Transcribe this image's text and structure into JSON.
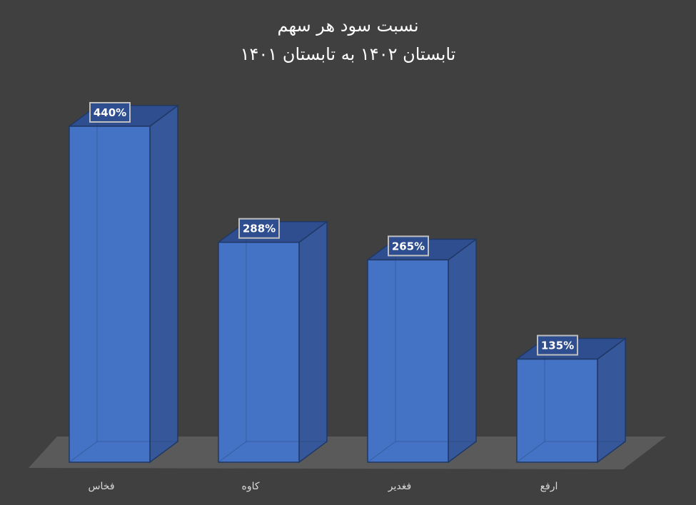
{
  "chart_data": {
    "type": "bar",
    "style": "3d-column",
    "title": "نسبت سود هر سهم",
    "subtitle": "تابستان ۱۴۰۲ به تابستان ۱۴۰۱",
    "categories": [
      "فخاس",
      "کاوه",
      "فغدیر",
      "ارفع"
    ],
    "values": [
      440,
      288,
      265,
      135
    ],
    "data_labels": [
      "440%",
      "288%",
      "265%",
      "135%"
    ],
    "unit": "%",
    "ylim": [
      0,
      500
    ],
    "grid": false,
    "legend": "none",
    "xlabel": "",
    "ylabel": ""
  },
  "colors": {
    "background": "#404040",
    "bar_front": "#4472C4",
    "bar_side": "#36579A",
    "bar_top": "#2E4E8F",
    "bar_edge": "#203864",
    "floor": "#5A5A5A",
    "text": "#FFFFFF",
    "axis_text": "#D9D9D9",
    "label_box_border": "#BFBFBF"
  }
}
